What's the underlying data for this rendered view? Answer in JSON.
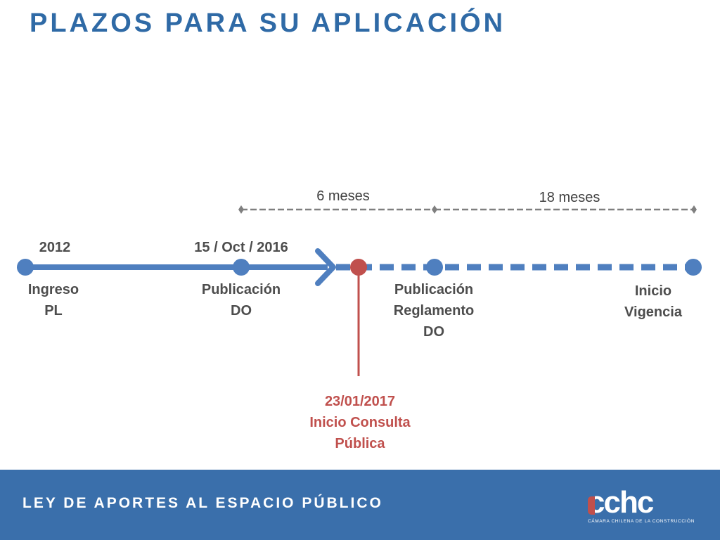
{
  "title": "PLAZOS PARA SU APLICACIÓN",
  "timeline": {
    "milestones": [
      {
        "date": "2012",
        "label": [
          "Ingreso",
          "PL"
        ]
      },
      {
        "date": "15 / Oct / 2016",
        "label": [
          "Publicación",
          "DO"
        ]
      },
      {
        "date": "",
        "label": [
          "Publicación",
          "Reglamento",
          "DO"
        ]
      },
      {
        "date": "",
        "label": [
          "Inicio",
          "Vigencia"
        ]
      }
    ],
    "current_event": {
      "date": "23/01/2017",
      "label": [
        "Inicio Consulta",
        "Pública"
      ]
    },
    "spans": [
      {
        "label": "6 meses"
      },
      {
        "label": "18 meses"
      }
    ]
  },
  "colors": {
    "accent": "#4f7fbf",
    "title": "#2f6aa6",
    "highlight": "#c0504d",
    "span_line": "#7f7f7f",
    "footer_bg": "#3a6fab"
  },
  "footer": {
    "text": "LEY DE APORTES AL ESPACIO PÚBLICO",
    "logo_text": "cchc",
    "logo_subtitle": "CÁMARA CHILENA DE LA CONSTRUCCIÓN"
  }
}
